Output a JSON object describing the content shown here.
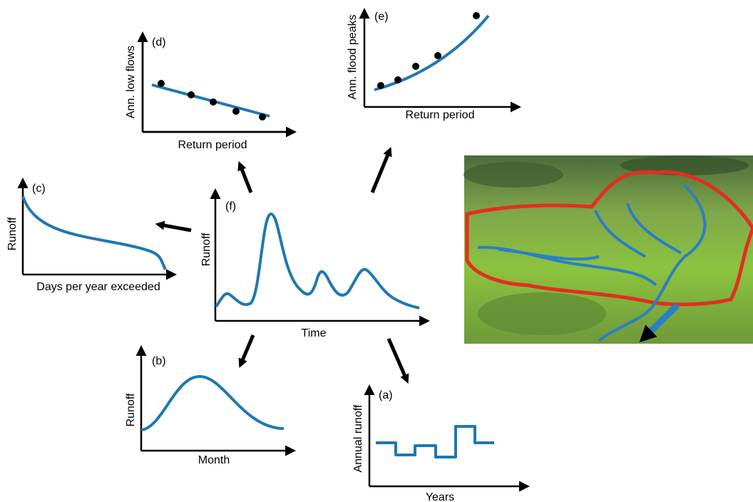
{
  "panels": [
    {
      "id": "(d)",
      "y_axis": "Ann. low flows",
      "x_axis": "Return period"
    },
    {
      "id": "(e)",
      "y_axis": "Ann. flood peaks",
      "x_axis": "Return period"
    },
    {
      "id": "(c)",
      "y_axis": "Runoff",
      "x_axis": "Days per year exceeded"
    },
    {
      "id": "(f)",
      "y_axis": "Runoff",
      "x_axis": "Time"
    },
    {
      "id": "(b)",
      "y_axis": "Runoff",
      "x_axis": "Month"
    },
    {
      "id": "(a)",
      "y_axis": "Annual runoff",
      "x_axis": "Years"
    }
  ]
}
